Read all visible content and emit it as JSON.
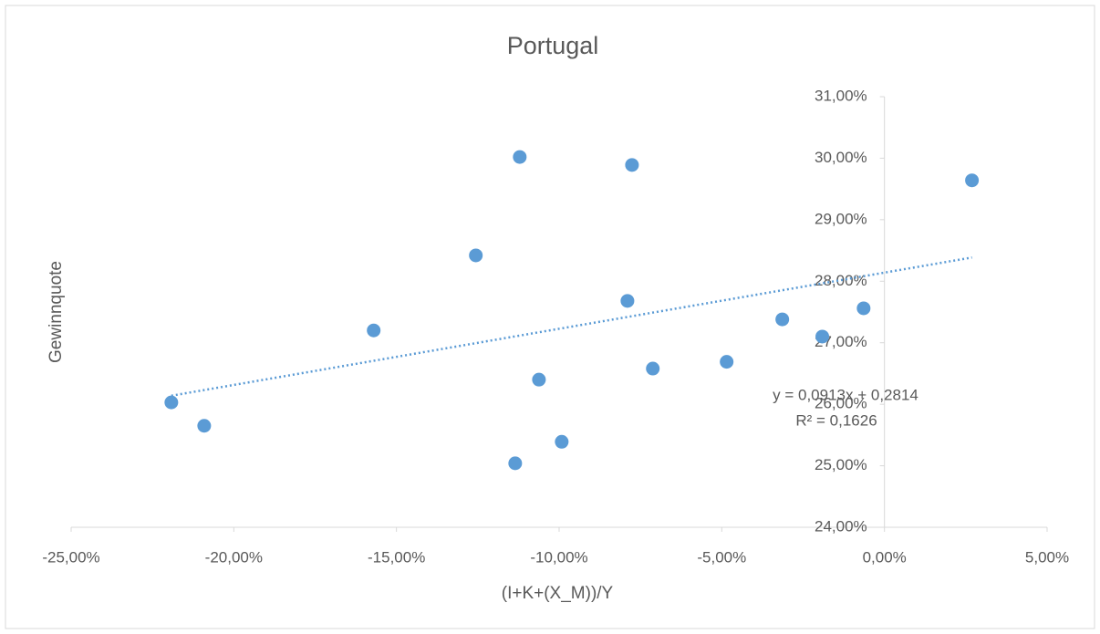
{
  "chart_data": {
    "type": "scatter",
    "title": "Portugal",
    "x_label": "(I+K+(X_M))/Y",
    "y_label": "Gewinnquote",
    "series": [
      {
        "name": "Gewinnquote",
        "color": "#5b9bd5",
        "x": [
          -21.92,
          -20.91,
          -15.7,
          -12.56,
          -11.21,
          -11.35,
          -10.62,
          -9.92,
          -7.76,
          -7.9,
          -7.12,
          -4.85,
          -3.14,
          -1.91,
          -0.64,
          2.69
        ],
        "values": [
          26.03,
          25.65,
          27.2,
          28.42,
          30.02,
          25.04,
          26.4,
          25.39,
          29.89,
          27.68,
          26.58,
          26.69,
          27.38,
          27.1,
          27.56,
          29.64
        ]
      }
    ],
    "trendline": {
      "slope": 0.0913,
      "intercept": 28.14,
      "equation": "y = 0,0913x + 0,2814",
      "r_squared": "R² = 0,1626",
      "color": "#5b9bd5"
    },
    "xlim": [
      -25,
      5
    ],
    "xticks": [
      {
        "value": -25,
        "label": "-25,00%"
      },
      {
        "value": -20,
        "label": "-20,00%"
      },
      {
        "value": -15,
        "label": "-15,00%"
      },
      {
        "value": -10,
        "label": "-10,00%"
      },
      {
        "value": -5,
        "label": "-5,00%"
      },
      {
        "value": 0,
        "label": "0,00%"
      },
      {
        "value": 5,
        "label": "5,00%"
      }
    ],
    "ylim": [
      24,
      31
    ],
    "yticks": [
      {
        "value": 24,
        "label": "24,00%"
      },
      {
        "value": 25,
        "label": "25,00%"
      },
      {
        "value": 26,
        "label": "26,00%"
      },
      {
        "value": 27,
        "label": "27,00%"
      },
      {
        "value": 28,
        "label": "28,00%"
      },
      {
        "value": 29,
        "label": "29,00%"
      },
      {
        "value": 30,
        "label": "30,00%"
      },
      {
        "value": 31,
        "label": "31,00%"
      }
    ],
    "y_axis_at": 0
  }
}
